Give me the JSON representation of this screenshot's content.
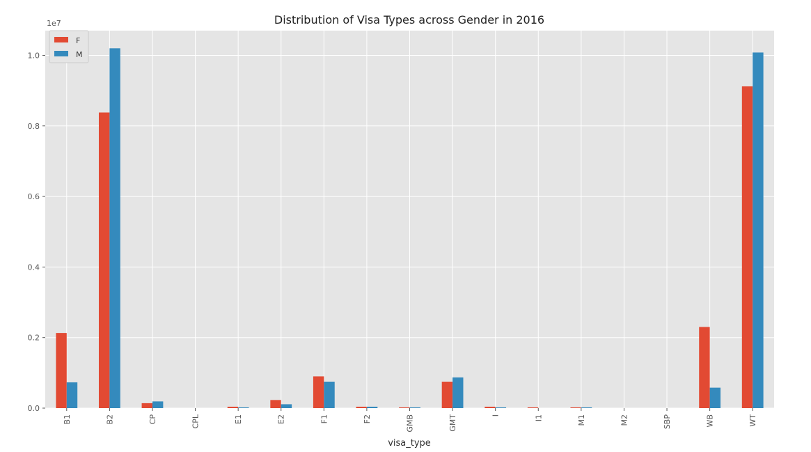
{
  "chart_data": {
    "type": "bar",
    "title": "Distribution of Visa Types across Gender in 2016",
    "xlabel": "visa_type",
    "ylabel": "",
    "y_offset_label": "1e7",
    "ylim": [
      0,
      1.07
    ],
    "yticks": [
      "0.0",
      "0.2",
      "0.4",
      "0.6",
      "0.8",
      "1.0"
    ],
    "ytick_values": [
      0,
      0.2,
      0.4,
      0.6,
      0.8,
      1.0
    ],
    "grid": true,
    "legend_position": "top-left",
    "categories": [
      "B1",
      "B2",
      "CP",
      "CPL",
      "E1",
      "E2",
      "F1",
      "F2",
      "GMB",
      "GMT",
      "I",
      "I1",
      "M1",
      "M2",
      "SBP",
      "WB",
      "WT"
    ],
    "series": [
      {
        "name": "F",
        "color": "#e24a33",
        "values": [
          0.213,
          0.838,
          0.014,
          0.0,
          0.004,
          0.023,
          0.09,
          0.004,
          0.002,
          0.075,
          0.004,
          0.002,
          0.002,
          0.0,
          0.0,
          0.23,
          0.912
        ]
      },
      {
        "name": "M",
        "color": "#348abd",
        "values": [
          0.073,
          1.02,
          0.019,
          0.0,
          0.002,
          0.011,
          0.075,
          0.004,
          0.002,
          0.087,
          0.002,
          0.0,
          0.002,
          0.0,
          0.0,
          0.058,
          1.008
        ]
      }
    ]
  }
}
